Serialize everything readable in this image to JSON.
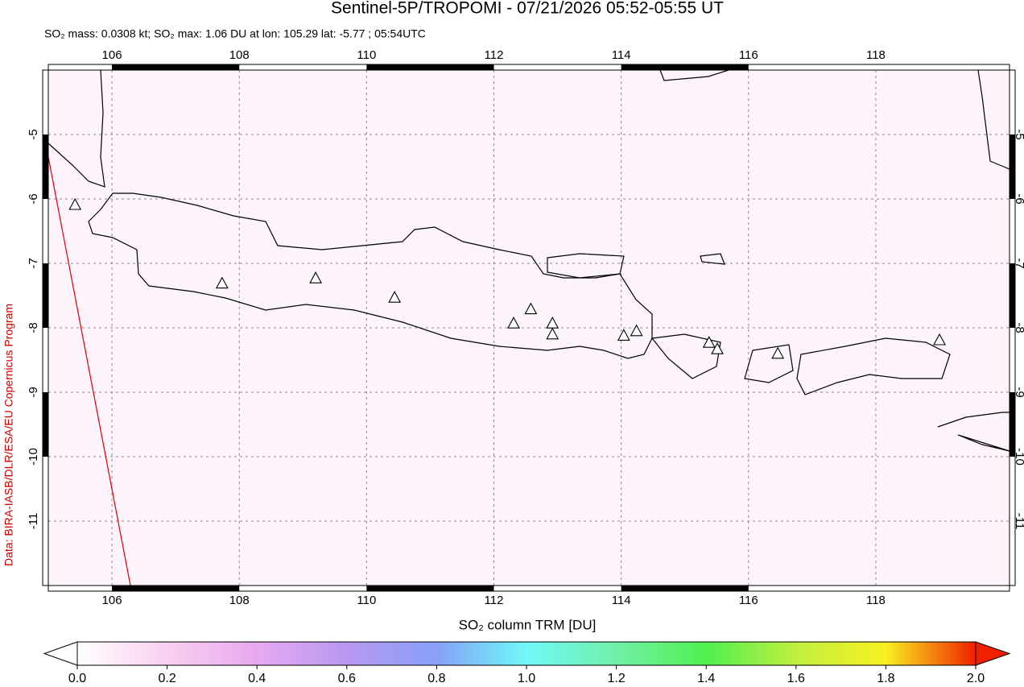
{
  "chart_data": {
    "type": "map",
    "title": "Sentinel-5P/TROPOMI - 07/21/2026 05:52-05:55 UT",
    "subtitle": "SO₂ mass: 0.0308 kt; SO₂ max: 1.06 DU at lon: 105.29 lat: -5.77 ; 05:54UTC",
    "credit": "Data: BIRA-IASB/DLR/ESA/EU Copernicus Program",
    "xlim": [
      105,
      120.1
    ],
    "ylim": [
      -12,
      -4
    ],
    "xticks": [
      106,
      108,
      110,
      112,
      114,
      116,
      118
    ],
    "yticks": [
      -5,
      -6,
      -7,
      -8,
      -9,
      -10,
      -11
    ],
    "grid": true,
    "volcanoes": {
      "color": "#ffffff",
      "lon": [
        105.42,
        107.73,
        109.2,
        110.44,
        112.31,
        112.58,
        112.92,
        112.92,
        114.04,
        114.24,
        115.38,
        115.51,
        116.46,
        119.0
      ],
      "lat": [
        -6.1,
        -7.32,
        -7.24,
        -7.54,
        -7.94,
        -7.72,
        -7.94,
        -8.11,
        -8.13,
        -8.06,
        -8.24,
        -8.34,
        -8.41,
        -8.2
      ]
    },
    "colorbar": {
      "label": "SO₂ column TRM [DU]",
      "lim": [
        0,
        2
      ],
      "ticks": [
        {
          "value": 0,
          "label": "0.0"
        },
        {
          "value": 0.2,
          "label": "0.2"
        },
        {
          "value": 0.4,
          "label": "0.4"
        },
        {
          "value": 0.6,
          "label": "0.6"
        },
        {
          "value": 0.8,
          "label": "0.8"
        },
        {
          "value": 1,
          "label": "1.0"
        },
        {
          "value": 1.2,
          "label": "1.2"
        },
        {
          "value": 1.4,
          "label": "1.4"
        },
        {
          "value": 1.6,
          "label": "1.6"
        },
        {
          "value": 1.8,
          "label": "1.8"
        },
        {
          "value": 2,
          "label": "2.0"
        }
      ],
      "colors": [
        "#ffffff",
        "#f8d0f0",
        "#e8a8f0",
        "#b898f0",
        "#88a0f8",
        "#70f8f8",
        "#70f0a8",
        "#50f050",
        "#c0f040",
        "#f8f020",
        "#f02000"
      ]
    }
  }
}
